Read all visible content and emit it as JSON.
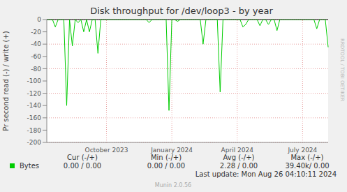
{
  "chart_data": {
    "type": "line",
    "title": "Disk throughput for /dev/loop3 - by year",
    "y_label": "Pr second read (-) / write (+)",
    "categories": [
      null,
      null,
      null,
      null,
      null,
      null,
      null,
      null,
      null,
      null,
      null,
      null,
      null,
      null,
      null,
      null,
      null,
      null,
      null,
      null,
      null,
      "October 2023",
      null,
      null,
      null,
      null,
      null,
      null,
      null,
      null,
      null,
      null,
      null,
      null,
      null,
      null,
      null,
      null,
      null,
      null,
      null,
      null,
      null,
      null,
      "January 2024",
      null,
      null,
      null,
      null,
      null,
      null,
      null,
      null,
      null,
      null,
      null,
      null,
      null,
      null,
      null,
      null,
      null,
      null,
      null,
      null,
      null,
      null,
      "April 2024",
      null,
      null,
      null,
      null,
      null,
      null,
      null,
      null,
      null,
      null,
      null,
      null,
      null,
      null,
      null,
      null,
      null,
      null,
      null,
      null,
      null,
      null,
      "July 2024",
      null,
      null,
      null,
      null,
      null,
      null,
      null,
      null,
      null
    ],
    "series": [
      {
        "name": "Bytes",
        "color": "#00cc00",
        "values": [
          0,
          0,
          0,
          -12,
          0,
          0,
          0,
          -140,
          0,
          -43,
          0,
          -5,
          0,
          -20,
          0,
          -20,
          0,
          0,
          -55,
          0,
          0,
          0,
          0,
          0,
          0,
          0,
          0,
          0,
          0,
          0,
          0,
          0,
          0,
          0,
          0,
          0,
          -5,
          0,
          0,
          0,
          0,
          0,
          0,
          -148,
          0,
          0,
          -3,
          0,
          0,
          0,
          0,
          0,
          0,
          0,
          0,
          -40,
          0,
          0,
          0,
          0,
          0,
          -118,
          0,
          0,
          0,
          0,
          0,
          0,
          0,
          -12,
          -8,
          0,
          0,
          0,
          0,
          -10,
          0,
          0,
          -8,
          0,
          0,
          -18,
          0,
          0,
          0,
          0,
          0,
          0,
          0,
          0,
          0,
          0,
          0,
          0,
          0,
          -15,
          0,
          0,
          0,
          -45
        ]
      }
    ],
    "ylim": [
      -200,
      0
    ],
    "yticks": [
      0,
      -20,
      -40,
      -60,
      -80,
      -100,
      -120,
      -140,
      -160,
      -180,
      -200
    ],
    "grid": true,
    "table": {
      "columns": [
        "Cur (-/+)",
        "Min (-/+)",
        "Avg (-/+)",
        "Max (-/+)"
      ],
      "rows": [
        [
          "0.00 / 0.00",
          "0.00 / 0.00",
          "2.28 / 0.00",
          "39.40k/ 0.00"
        ]
      ]
    },
    "annotations": [
      "Last update: Mon Aug 26 04:10:11 2024",
      "Munin 2.0.56",
      "RRDTOOL / TOBI OETIKER"
    ]
  }
}
